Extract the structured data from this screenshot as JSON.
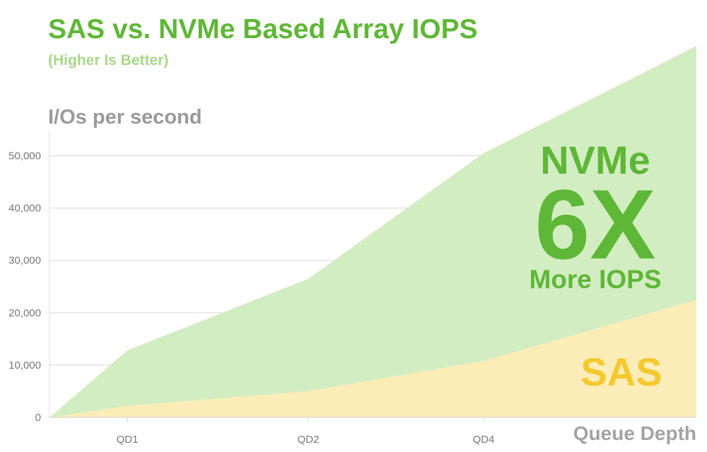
{
  "chart_data": {
    "type": "area",
    "title": "SAS vs. NVMe Based Array IOPS",
    "subtitle": "(Higher Is Better)",
    "ylabel": "I/Os per second",
    "xlabel": "Queue Depth",
    "categories": [
      "",
      "QD1",
      "QD2",
      "QD4",
      ""
    ],
    "series": [
      {
        "name": "NVMe",
        "values": [
          0,
          12800,
          26500,
          50500,
          71000
        ],
        "color": "#d3edc2"
      },
      {
        "name": "SAS",
        "values": [
          0,
          2200,
          5000,
          10800,
          22500
        ],
        "color": "#fbedb8"
      }
    ],
    "yticks": [
      0,
      10000,
      20000,
      30000,
      40000,
      50000
    ],
    "ytick_labels": [
      "0",
      "10,000",
      "20,000",
      "30,000",
      "40,000",
      "50,000"
    ],
    "ylim": [
      0,
      71000
    ],
    "grid": true,
    "annotations": {
      "nvme_line1": "NVMe",
      "nvme_line2": "6X",
      "nvme_line3": "More IOPS",
      "sas_label": "SAS"
    }
  }
}
